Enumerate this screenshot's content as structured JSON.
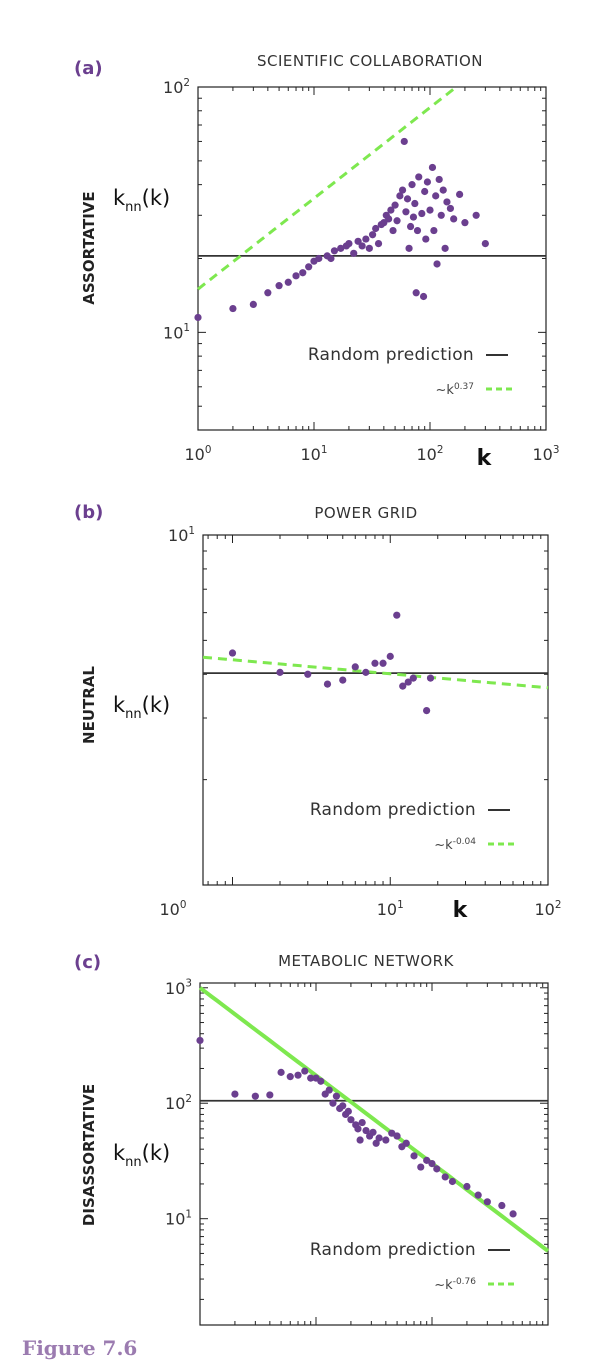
{
  "figure_caption": "Figure 7.6",
  "colors": {
    "points": "#6b3f8f",
    "fit": "#7ee84f",
    "random": "#333333",
    "accent": "#6b3f8f"
  },
  "chart_data": [
    {
      "id": "a",
      "type": "scatter",
      "panel_letter": "(a)",
      "title": "SCIENTIFIC COLLABORATION",
      "side_label": "ASSORTATIVE",
      "ylabel": "k_nn(k)",
      "xlabel": "k",
      "xscale": "log",
      "yscale": "log",
      "xlim": [
        1,
        1000
      ],
      "ylim": [
        4,
        100
      ],
      "xticks": [
        1,
        10,
        100,
        1000
      ],
      "xtick_labels": [
        "10^0",
        "10^1",
        "10^2",
        "10^3"
      ],
      "yticks": [
        10,
        100
      ],
      "ytick_labels": [
        "10^1",
        "10^2"
      ],
      "random_prediction": 20.5,
      "fit": {
        "label": "~k^0.37",
        "exponent": 0.37,
        "coef": 15.0
      },
      "legend": [
        {
          "label": "Random prediction",
          "style": "line"
        },
        {
          "label": "~k",
          "sup": "0.37",
          "style": "dashed"
        }
      ],
      "points": [
        [
          1,
          11.5
        ],
        [
          2,
          12.5
        ],
        [
          3,
          13.0
        ],
        [
          4,
          14.5
        ],
        [
          5,
          15.5
        ],
        [
          6,
          16.0
        ],
        [
          7,
          17.0
        ],
        [
          8,
          17.5
        ],
        [
          9,
          18.5
        ],
        [
          10,
          19.5
        ],
        [
          11,
          20.0
        ],
        [
          13,
          20.5
        ],
        [
          14,
          20.0
        ],
        [
          15,
          21.5
        ],
        [
          17,
          22.0
        ],
        [
          19,
          22.5
        ],
        [
          20,
          23.0
        ],
        [
          22,
          21.0
        ],
        [
          24,
          23.5
        ],
        [
          26,
          22.5
        ],
        [
          28,
          24.0
        ],
        [
          30,
          22.0
        ],
        [
          32,
          25.0
        ],
        [
          34,
          26.5
        ],
        [
          36,
          23.0
        ],
        [
          38,
          27.5
        ],
        [
          40,
          28.0
        ],
        [
          42,
          30.0
        ],
        [
          44,
          29.0
        ],
        [
          46,
          31.5
        ],
        [
          48,
          26.0
        ],
        [
          50,
          33.0
        ],
        [
          52,
          28.5
        ],
        [
          55,
          36.0
        ],
        [
          58,
          38.0
        ],
        [
          60,
          60.0
        ],
        [
          62,
          31.0
        ],
        [
          64,
          35.0
        ],
        [
          66,
          22.0
        ],
        [
          68,
          27.0
        ],
        [
          70,
          40.0
        ],
        [
          72,
          29.5
        ],
        [
          74,
          33.5
        ],
        [
          76,
          14.5
        ],
        [
          78,
          26.0
        ],
        [
          80,
          43.0
        ],
        [
          85,
          30.5
        ],
        [
          88,
          14.0
        ],
        [
          90,
          37.5
        ],
        [
          92,
          24.0
        ],
        [
          95,
          41.0
        ],
        [
          100,
          31.5
        ],
        [
          105,
          47.0
        ],
        [
          108,
          26.0
        ],
        [
          112,
          36.0
        ],
        [
          115,
          19.0
        ],
        [
          120,
          42.0
        ],
        [
          125,
          30.0
        ],
        [
          130,
          38.0
        ],
        [
          135,
          22.0
        ],
        [
          140,
          34.0
        ],
        [
          150,
          32.0
        ],
        [
          160,
          29.0
        ],
        [
          180,
          36.5
        ],
        [
          200,
          28.0
        ],
        [
          250,
          30.0
        ],
        [
          300,
          23.0
        ]
      ]
    },
    {
      "id": "b",
      "type": "scatter",
      "panel_letter": "(b)",
      "title": "POWER GRID",
      "side_label": "NEUTRAL",
      "ylabel": "k_nn(k)",
      "xlabel": "k",
      "xscale": "log",
      "yscale": "log",
      "xlim": [
        0.65,
        100
      ],
      "ylim": [
        1,
        10
      ],
      "xticks": [
        1,
        10,
        100
      ],
      "xtick_labels": [
        "10^0",
        "10^1",
        "10^2"
      ],
      "yticks": [
        10
      ],
      "ytick_labels": [
        "10^1"
      ],
      "random_prediction": 4.03,
      "fit": {
        "label": "~k^-0.04",
        "exponent": -0.04,
        "coef": 4.4
      },
      "legend": [
        {
          "label": "Random prediction",
          "style": "line"
        },
        {
          "label": "~k",
          "sup": "-0.04",
          "style": "dashed"
        }
      ],
      "points": [
        [
          1,
          4.6
        ],
        [
          2,
          4.05
        ],
        [
          3,
          4.0
        ],
        [
          4,
          3.75
        ],
        [
          5,
          3.85
        ],
        [
          6,
          4.2
        ],
        [
          7,
          4.05
        ],
        [
          8,
          4.3
        ],
        [
          9,
          4.3
        ],
        [
          10,
          4.5
        ],
        [
          11,
          5.9
        ],
        [
          12,
          3.7
        ],
        [
          13,
          3.8
        ],
        [
          14,
          3.9
        ],
        [
          17,
          3.15
        ],
        [
          18,
          3.9
        ]
      ]
    },
    {
      "id": "c",
      "type": "scatter",
      "panel_letter": "(c)",
      "title": "METABOLIC NETWORK",
      "side_label": "DISASSORTATIVE",
      "ylabel": "k_nn(k)",
      "xlabel": "",
      "xscale": "log",
      "yscale": "log",
      "xlim": [
        1,
        1000
      ],
      "ylim": [
        1.2,
        1100
      ],
      "xticks": [
        1,
        10,
        100,
        1000
      ],
      "xtick_labels": [],
      "yticks": [
        10,
        100,
        1000
      ],
      "ytick_labels": [
        "10^1",
        "10^2",
        "10^3"
      ],
      "random_prediction": 105,
      "fit": {
        "label": "~k^-0.76",
        "exponent": -0.76,
        "coef": 1000
      },
      "legend": [
        {
          "label": "Random prediction",
          "style": "line"
        },
        {
          "label": "~k",
          "sup": "-0.76",
          "style": "dashed"
        }
      ],
      "points": [
        [
          1,
          350
        ],
        [
          2,
          120
        ],
        [
          3,
          115
        ],
        [
          4,
          118
        ],
        [
          5,
          185
        ],
        [
          6,
          170
        ],
        [
          7,
          175
        ],
        [
          8,
          190
        ],
        [
          9,
          165
        ],
        [
          10,
          165
        ],
        [
          11,
          155
        ],
        [
          12,
          120
        ],
        [
          13,
          130
        ],
        [
          14,
          100
        ],
        [
          15,
          115
        ],
        [
          16,
          90
        ],
        [
          17,
          95
        ],
        [
          18,
          80
        ],
        [
          19,
          85
        ],
        [
          20,
          72
        ],
        [
          22,
          65
        ],
        [
          23,
          60
        ],
        [
          24,
          48
        ],
        [
          25,
          68
        ],
        [
          27,
          58
        ],
        [
          29,
          52
        ],
        [
          31,
          56
        ],
        [
          33,
          45
        ],
        [
          35,
          50
        ],
        [
          40,
          48
        ],
        [
          45,
          55
        ],
        [
          50,
          52
        ],
        [
          55,
          42
        ],
        [
          60,
          45
        ],
        [
          70,
          35
        ],
        [
          80,
          28
        ],
        [
          90,
          32
        ],
        [
          100,
          30
        ],
        [
          110,
          27
        ],
        [
          130,
          23
        ],
        [
          150,
          21
        ],
        [
          200,
          19
        ],
        [
          250,
          16
        ],
        [
          300,
          14
        ],
        [
          400,
          13
        ],
        [
          500,
          11
        ]
      ]
    }
  ]
}
